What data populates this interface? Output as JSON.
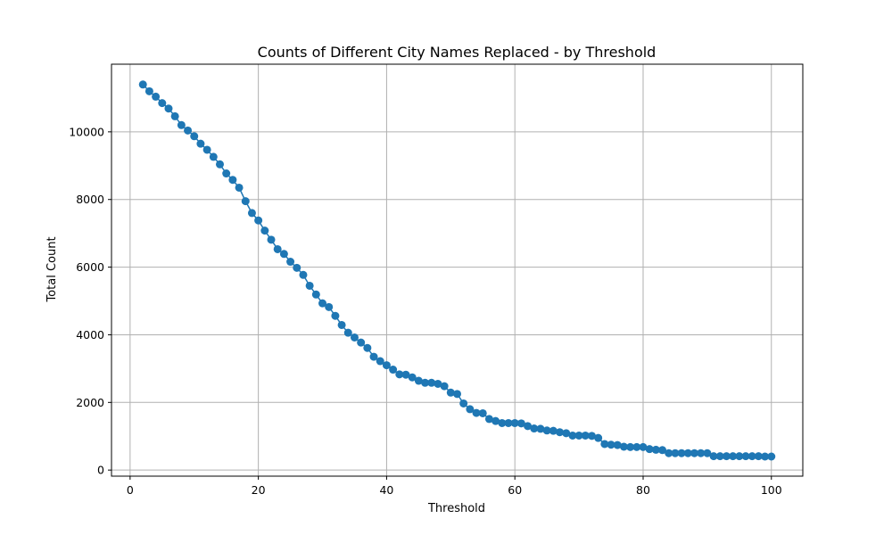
{
  "chart_data": {
    "type": "line",
    "title": "Counts of Different City Names Replaced - by Threshold",
    "xlabel": "Threshold",
    "ylabel": "Total Count",
    "xlim": [
      -2.9,
      104.9
    ],
    "ylim": [
      -180,
      12000
    ],
    "xticks": [
      0,
      20,
      40,
      60,
      80,
      100
    ],
    "yticks": [
      0,
      2000,
      4000,
      6000,
      8000,
      10000
    ],
    "grid": true,
    "legend": "none",
    "marker": "circle",
    "color": "#1f77b4",
    "series": [
      {
        "x": [
          2,
          3,
          4,
          5,
          6,
          7,
          8,
          9,
          10,
          11,
          12,
          13,
          14,
          15,
          16,
          17,
          18,
          19,
          20,
          21,
          22,
          23,
          24,
          25,
          26,
          27,
          28,
          29,
          30,
          31,
          32,
          33,
          34,
          35,
          36,
          37,
          38,
          39,
          40,
          41,
          42,
          43,
          44,
          45,
          46,
          47,
          48,
          49,
          50,
          51,
          52,
          53,
          54,
          55,
          56,
          57,
          58,
          59,
          60,
          61,
          62,
          63,
          64,
          65,
          66,
          67,
          68,
          69,
          70,
          71,
          72,
          73,
          74,
          75,
          76,
          77,
          78,
          79,
          80,
          81,
          82,
          83,
          84,
          85,
          86,
          87,
          88,
          89,
          90,
          91,
          92,
          93,
          94,
          95,
          96,
          97,
          98,
          99,
          100
        ],
        "values": [
          11400,
          11200,
          11040,
          10850,
          10690,
          10460,
          10200,
          10040,
          9870,
          9650,
          9470,
          9260,
          9040,
          8770,
          8580,
          8350,
          7950,
          7600,
          7380,
          7080,
          6810,
          6530,
          6390,
          6160,
          5980,
          5770,
          5450,
          5190,
          4930,
          4820,
          4560,
          4290,
          4060,
          3920,
          3770,
          3610,
          3350,
          3220,
          3100,
          2970,
          2830,
          2820,
          2740,
          2640,
          2580,
          2580,
          2550,
          2480,
          2290,
          2250,
          1970,
          1800,
          1690,
          1680,
          1510,
          1450,
          1390,
          1390,
          1390,
          1380,
          1300,
          1230,
          1220,
          1170,
          1160,
          1120,
          1090,
          1020,
          1020,
          1020,
          1010,
          950,
          770,
          750,
          740,
          690,
          680,
          680,
          680,
          620,
          600,
          590,
          500,
          500,
          500,
          500,
          500,
          500,
          500,
          410,
          410,
          410,
          410,
          410,
          410,
          410,
          410,
          400,
          400
        ]
      }
    ]
  }
}
